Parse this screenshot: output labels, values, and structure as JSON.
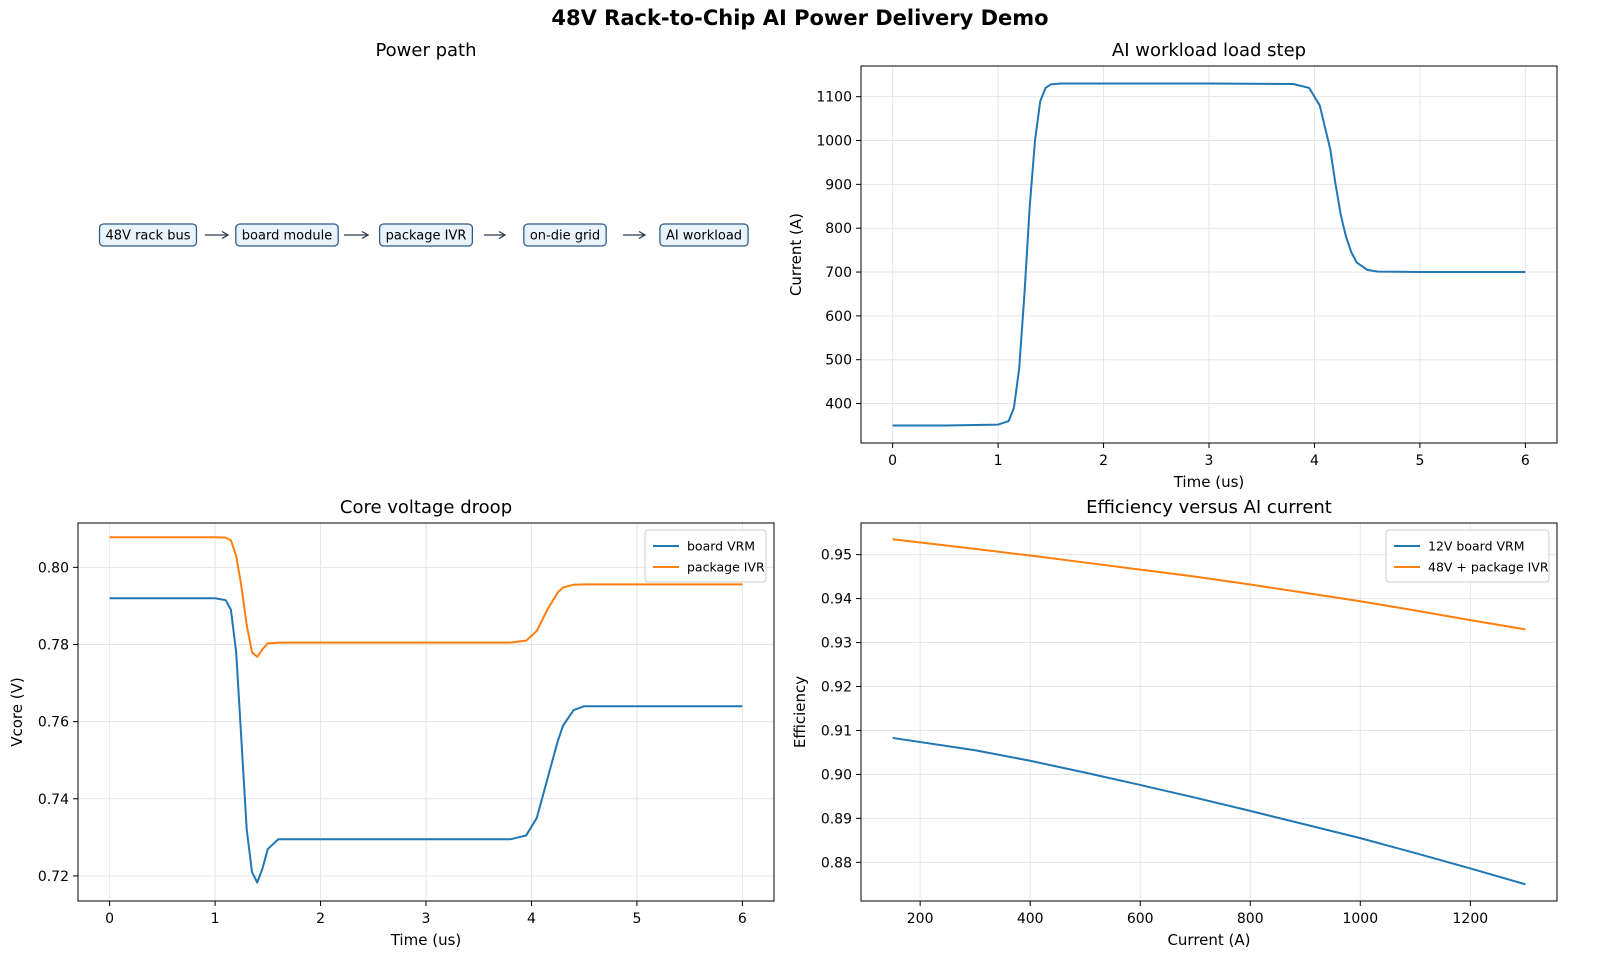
{
  "figure": {
    "title": "48V Rack-to-Chip AI Power Delivery Demo"
  },
  "colors": {
    "blue": "#1f77b4",
    "orange": "#ff7f0e",
    "grid": "#e6e6e6",
    "node_fill": "#eaf2fb",
    "node_stroke": "#2f5b8a",
    "arrow": "#2b3a4e"
  },
  "chart_data": [
    {
      "type": "diagram",
      "title": "Power path",
      "nodes": [
        "48V rack bus",
        "board module",
        "package IVR",
        "on-die grid",
        "AI workload"
      ]
    },
    {
      "type": "line",
      "title": "AI workload load step",
      "xlabel": "Time (us)",
      "ylabel": "Current (A)",
      "xlim": [
        -0.3,
        6.3
      ],
      "ylim": [
        310,
        1170
      ],
      "xticks": [
        0,
        1,
        2,
        3,
        4,
        5,
        6
      ],
      "yticks": [
        400,
        500,
        600,
        700,
        800,
        900,
        1000,
        1100
      ],
      "grid": true,
      "series": [
        {
          "name": "",
          "color": "#1f77b4",
          "x": [
            0,
            0.5,
            1.0,
            1.1,
            1.15,
            1.2,
            1.25,
            1.3,
            1.35,
            1.4,
            1.45,
            1.5,
            1.6,
            2.0,
            3.0,
            3.8,
            3.95,
            4.05,
            4.15,
            4.2,
            4.25,
            4.3,
            4.35,
            4.4,
            4.5,
            4.6,
            5.0,
            6.0
          ],
          "y": [
            350,
            350,
            352,
            360,
            390,
            480,
            650,
            850,
            1000,
            1090,
            1120,
            1128,
            1130,
            1130,
            1130,
            1129,
            1120,
            1080,
            980,
            900,
            830,
            780,
            745,
            722,
            705,
            701,
            700,
            700
          ]
        }
      ]
    },
    {
      "type": "line",
      "title": "Core voltage droop",
      "xlabel": "Time (us)",
      "ylabel": "Vcore (V)",
      "xlim": [
        -0.3,
        6.3
      ],
      "ylim": [
        0.7135,
        0.8115
      ],
      "xticks": [
        0,
        1,
        2,
        3,
        4,
        5,
        6
      ],
      "yticks": [
        0.72,
        0.74,
        0.76,
        0.78,
        0.8
      ],
      "grid": true,
      "legend": "upper right",
      "series": [
        {
          "name": "board VRM",
          "color": "#1f77b4",
          "x": [
            0,
            0.5,
            1.0,
            1.1,
            1.15,
            1.2,
            1.25,
            1.3,
            1.35,
            1.4,
            1.45,
            1.5,
            1.6,
            2.0,
            3.0,
            3.8,
            3.95,
            4.05,
            4.15,
            4.25,
            4.3,
            4.4,
            4.5,
            4.6,
            5.0,
            6.0
          ],
          "y": [
            0.792,
            0.792,
            0.792,
            0.7915,
            0.789,
            0.778,
            0.755,
            0.732,
            0.721,
            0.7183,
            0.722,
            0.727,
            0.7295,
            0.7295,
            0.7295,
            0.7295,
            0.7305,
            0.735,
            0.745,
            0.755,
            0.759,
            0.763,
            0.764,
            0.764,
            0.764,
            0.764
          ]
        },
        {
          "name": "package IVR",
          "color": "#ff7f0e",
          "x": [
            0,
            0.5,
            1.0,
            1.1,
            1.15,
            1.2,
            1.25,
            1.3,
            1.35,
            1.4,
            1.45,
            1.5,
            1.6,
            2.0,
            3.0,
            3.8,
            3.95,
            4.05,
            4.15,
            4.25,
            4.3,
            4.4,
            4.5,
            4.6,
            5.0,
            6.0
          ],
          "y": [
            0.8078,
            0.8078,
            0.8078,
            0.8077,
            0.807,
            0.803,
            0.795,
            0.785,
            0.778,
            0.7768,
            0.7788,
            0.7803,
            0.7805,
            0.7805,
            0.7805,
            0.7805,
            0.781,
            0.7835,
            0.789,
            0.7935,
            0.7948,
            0.7955,
            0.7956,
            0.7956,
            0.7956,
            0.7956
          ]
        }
      ]
    },
    {
      "type": "line",
      "title": "Efficiency versus AI current",
      "xlabel": "Current (A)",
      "ylabel": "Efficiency",
      "xlim": [
        92.5,
        1357.5
      ],
      "ylim": [
        0.8712,
        0.9572
      ],
      "xticks": [
        200,
        400,
        600,
        800,
        1000,
        1200
      ],
      "yticks": [
        0.88,
        0.89,
        0.9,
        0.91,
        0.92,
        0.93,
        0.94,
        0.95
      ],
      "grid": true,
      "legend": "upper right",
      "series": [
        {
          "name": "12V board VRM",
          "color": "#1f77b4",
          "x": [
            150,
            300,
            400,
            500,
            600,
            700,
            800,
            900,
            1000,
            1100,
            1200,
            1300
          ],
          "y": [
            0.9083,
            0.9055,
            0.9031,
            0.9004,
            0.8976,
            0.8947,
            0.8917,
            0.8886,
            0.8855,
            0.8821,
            0.8786,
            0.875
          ]
        },
        {
          "name": "48V + package IVR",
          "color": "#ff7f0e",
          "x": [
            150,
            300,
            400,
            500,
            600,
            700,
            800,
            900,
            1000,
            1100,
            1200,
            1300
          ],
          "y": [
            0.9535,
            0.9513,
            0.9498,
            0.9482,
            0.9466,
            0.945,
            0.9432,
            0.9413,
            0.9394,
            0.9373,
            0.9351,
            0.933
          ]
        }
      ]
    }
  ]
}
